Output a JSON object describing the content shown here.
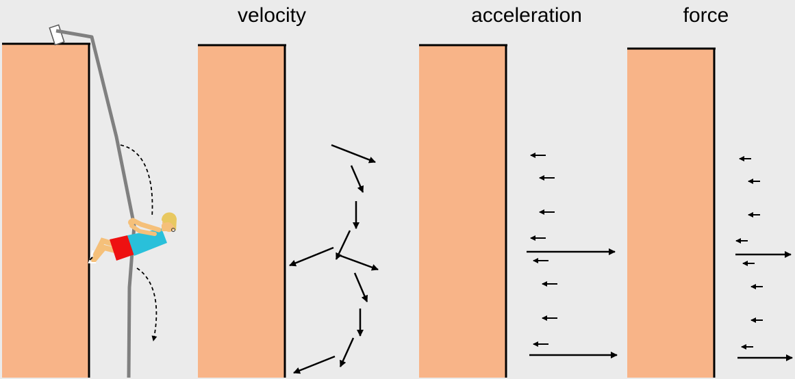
{
  "colors": {
    "background": "#ebebeb",
    "wall_fill": "#f8b488",
    "wall_edge": "#000000",
    "rope": "#808080",
    "arrow": "#000000",
    "shirt": "#29c0da",
    "shorts": "#ee1111",
    "skin": "#f5c07a",
    "hair": "#e8c860"
  },
  "panels": [
    {
      "id": "climber",
      "title": ""
    },
    {
      "id": "velocity",
      "title": "velocity"
    },
    {
      "id": "acceleration",
      "title": "acceleration"
    },
    {
      "id": "force",
      "title": "force"
    }
  ]
}
